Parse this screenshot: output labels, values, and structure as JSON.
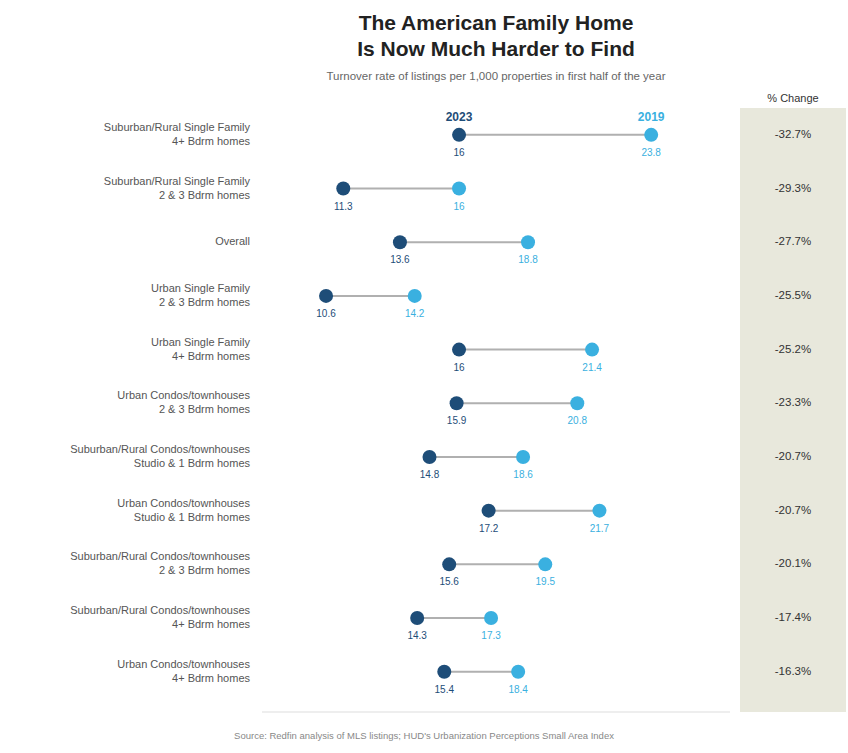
{
  "chart_data": {
    "type": "dumbbell",
    "orientation": "horizontal",
    "title": "The American Family Home\nIs Now Much Harder to Find",
    "subtitle": "Turnover rate of listings per 1,000 properties in first half of the year",
    "annotations": [
      {
        "text": "Source: Redfin analysis of MLS listings; HUD's Urbanization Perceptions Small Area Index"
      }
    ],
    "categories": [
      "Suburban/Rural Single Family\n4+ Bdrm homes",
      "Suburban/Rural Single Family\n2 & 3 Bdrm homes",
      "Overall",
      "Urban Single Family\n2 & 3 Bdrm homes",
      "Urban Single Family\n4+ Bdrm homes",
      "Urban Condos/townhouses\n2 & 3 Bdrm homes",
      "Suburban/Rural Condos/townhouses\nStudio & 1 Bdrm homes",
      "Urban Condos/townhouses\nStudio & 1 Bdrm homes",
      "Suburban/Rural Condos/townhouses\n2 & 3 Bdrm homes",
      "Suburban/Rural Condos/townhouses\n4+ Bdrm homes",
      "Urban Condos/townhouses\n4+ Bdrm homes"
    ],
    "series": [
      {
        "name": "2023",
        "color": "#1e4d78",
        "values": [
          16.0,
          11.3,
          13.6,
          10.6,
          16.0,
          15.9,
          14.8,
          17.2,
          15.6,
          14.3,
          15.4
        ]
      },
      {
        "name": "2019",
        "color": "#3ab0e0",
        "values": [
          23.8,
          16.0,
          18.8,
          14.2,
          21.4,
          20.8,
          18.6,
          21.7,
          19.5,
          17.3,
          18.4
        ]
      }
    ],
    "change": {
      "name": "% Change",
      "values": [
        -32.7,
        -29.3,
        -27.7,
        -25.5,
        -25.2,
        -23.3,
        -20.7,
        -20.7,
        -20.1,
        -17.4,
        -16.3
      ],
      "value_labels": [
        "-32.7%",
        "-29.3%",
        "-27.7%",
        "-25.5%",
        "-25.2%",
        "-23.3%",
        "-20.7%",
        "-20.7%",
        "-20.1%",
        "-17.4%",
        "-16.3%"
      ]
    },
    "color": "#b0b0b0",
    "xlim": [
      8.0,
      27.0
    ],
    "data_labels": true,
    "tick_labels": false,
    "grid": false
  }
}
